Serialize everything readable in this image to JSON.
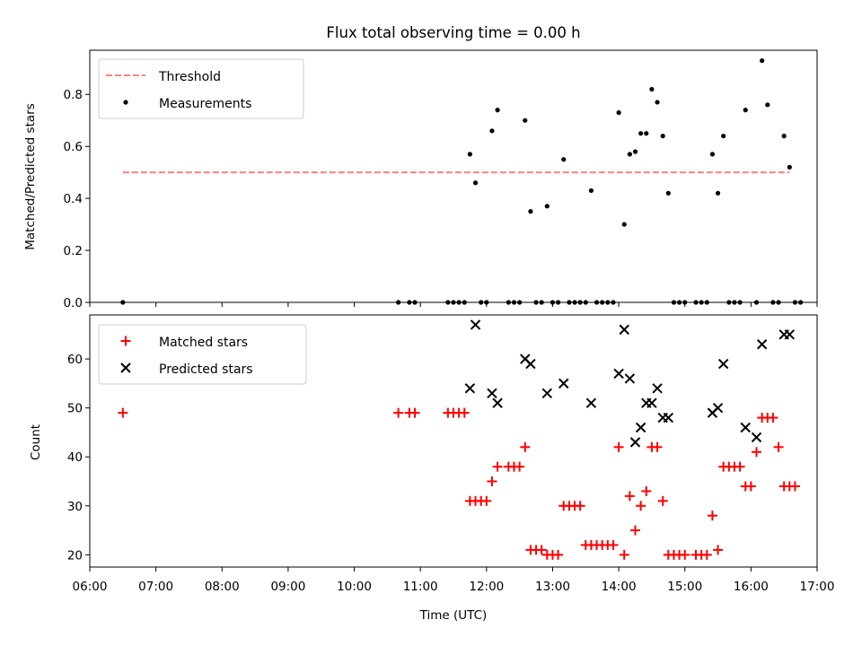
{
  "chart_data": [
    {
      "type": "scatter",
      "title": "Flux total observing time = 0.00 h",
      "xlabel": "",
      "ylabel": "Matched/Predicted stars",
      "ylim": [
        0,
        0.97
      ],
      "yticks": [
        0.0,
        0.2,
        0.4,
        0.6,
        0.8
      ],
      "ytick_labels": [
        "0.0",
        "0.2",
        "0.4",
        "0.6",
        "0.8"
      ],
      "legend_position": "top-left",
      "threshold": {
        "name": "Threshold",
        "value": 0.5,
        "x_start": "06:30",
        "x_end": "16:35",
        "color": "#ff8080"
      },
      "series": [
        {
          "name": "Measurements",
          "color": "#000000",
          "points": [
            [
              "06:30",
              0
            ],
            [
              "10:40",
              0
            ],
            [
              "10:50",
              0
            ],
            [
              "10:55",
              0
            ],
            [
              "11:25",
              0
            ],
            [
              "11:30",
              0
            ],
            [
              "11:35",
              0
            ],
            [
              "11:40",
              0
            ],
            [
              "11:45",
              0.57
            ],
            [
              "11:50",
              0.46
            ],
            [
              "11:55",
              0
            ],
            [
              "12:00",
              0
            ],
            [
              "12:05",
              0.66
            ],
            [
              "12:10",
              0.74
            ],
            [
              "12:20",
              0
            ],
            [
              "12:25",
              0
            ],
            [
              "12:30",
              0
            ],
            [
              "12:35",
              0.7
            ],
            [
              "12:40",
              0.35
            ],
            [
              "12:45",
              0
            ],
            [
              "12:50",
              0
            ],
            [
              "12:55",
              0.37
            ],
            [
              "13:00",
              0
            ],
            [
              "13:05",
              0
            ],
            [
              "13:10",
              0.55
            ],
            [
              "13:15",
              0
            ],
            [
              "13:20",
              0
            ],
            [
              "13:25",
              0
            ],
            [
              "13:30",
              0
            ],
            [
              "13:35",
              0.43
            ],
            [
              "13:40",
              0
            ],
            [
              "13:45",
              0
            ],
            [
              "13:50",
              0
            ],
            [
              "13:55",
              0
            ],
            [
              "14:00",
              0.73
            ],
            [
              "14:05",
              0.3
            ],
            [
              "14:10",
              0.57
            ],
            [
              "14:15",
              0.58
            ],
            [
              "14:20",
              0.65
            ],
            [
              "14:25",
              0.65
            ],
            [
              "14:30",
              0.82
            ],
            [
              "14:35",
              0.77
            ],
            [
              "14:40",
              0.64
            ],
            [
              "14:45",
              0.42
            ],
            [
              "14:50",
              0
            ],
            [
              "14:55",
              0
            ],
            [
              "15:00",
              0
            ],
            [
              "15:10",
              0
            ],
            [
              "15:15",
              0
            ],
            [
              "15:20",
              0
            ],
            [
              "15:25",
              0.57
            ],
            [
              "15:30",
              0.42
            ],
            [
              "15:35",
              0.64
            ],
            [
              "15:40",
              0
            ],
            [
              "15:45",
              0
            ],
            [
              "15:50",
              0
            ],
            [
              "15:55",
              0.74
            ],
            [
              "16:05",
              0
            ],
            [
              "16:10",
              0.93
            ],
            [
              "16:15",
              0.76
            ],
            [
              "16:20",
              0
            ],
            [
              "16:25",
              0
            ],
            [
              "16:30",
              0.64
            ],
            [
              "16:35",
              0.52
            ],
            [
              "16:40",
              0
            ],
            [
              "16:45",
              0
            ]
          ]
        }
      ]
    },
    {
      "type": "scatter",
      "title": "",
      "xlabel": "Time (UTC)",
      "ylabel": "Count",
      "xlim": [
        "06:00",
        "17:00"
      ],
      "xtick_labels": [
        "06:00",
        "07:00",
        "08:00",
        "09:00",
        "10:00",
        "11:00",
        "12:00",
        "13:00",
        "14:00",
        "15:00",
        "16:00",
        "17:00"
      ],
      "ylim": [
        17.5,
        69
      ],
      "yticks": [
        20,
        30,
        40,
        50,
        60
      ],
      "ytick_labels": [
        "20",
        "30",
        "40",
        "50",
        "60"
      ],
      "legend_position": "top-left",
      "series": [
        {
          "name": "Matched stars",
          "marker": "+",
          "color": "#ff0000",
          "points": [
            [
              "06:30",
              49
            ],
            [
              "10:40",
              49
            ],
            [
              "10:50",
              49
            ],
            [
              "10:55",
              49
            ],
            [
              "11:25",
              49
            ],
            [
              "11:30",
              49
            ],
            [
              "11:35",
              49
            ],
            [
              "11:40",
              49
            ],
            [
              "11:45",
              31
            ],
            [
              "11:50",
              31
            ],
            [
              "11:55",
              31
            ],
            [
              "12:00",
              31
            ],
            [
              "12:05",
              35
            ],
            [
              "12:10",
              38
            ],
            [
              "12:20",
              38
            ],
            [
              "12:25",
              38
            ],
            [
              "12:30",
              38
            ],
            [
              "12:35",
              42
            ],
            [
              "12:40",
              21
            ],
            [
              "12:45",
              21
            ],
            [
              "12:50",
              21
            ],
            [
              "12:55",
              20
            ],
            [
              "13:00",
              20
            ],
            [
              "13:05",
              20
            ],
            [
              "13:10",
              30
            ],
            [
              "13:15",
              30
            ],
            [
              "13:20",
              30
            ],
            [
              "13:25",
              30
            ],
            [
              "13:30",
              22
            ],
            [
              "13:35",
              22
            ],
            [
              "13:40",
              22
            ],
            [
              "13:45",
              22
            ],
            [
              "13:50",
              22
            ],
            [
              "13:55",
              22
            ],
            [
              "14:00",
              42
            ],
            [
              "14:05",
              20
            ],
            [
              "14:10",
              32
            ],
            [
              "14:15",
              25
            ],
            [
              "14:20",
              30
            ],
            [
              "14:25",
              33
            ],
            [
              "14:30",
              42
            ],
            [
              "14:35",
              42
            ],
            [
              "14:40",
              31
            ],
            [
              "14:45",
              20
            ],
            [
              "14:50",
              20
            ],
            [
              "14:55",
              20
            ],
            [
              "15:00",
              20
            ],
            [
              "15:10",
              20
            ],
            [
              "15:15",
              20
            ],
            [
              "15:20",
              20
            ],
            [
              "15:25",
              28
            ],
            [
              "15:30",
              21
            ],
            [
              "15:35",
              38
            ],
            [
              "15:40",
              38
            ],
            [
              "15:45",
              38
            ],
            [
              "15:50",
              38
            ],
            [
              "15:55",
              34
            ],
            [
              "16:00",
              34
            ],
            [
              "16:05",
              41
            ],
            [
              "16:10",
              48
            ],
            [
              "16:15",
              48
            ],
            [
              "16:20",
              48
            ],
            [
              "16:25",
              42
            ],
            [
              "16:30",
              34
            ],
            [
              "16:35",
              34
            ],
            [
              "16:40",
              34
            ]
          ]
        },
        {
          "name": "Predicted stars",
          "marker": "x",
          "color": "#000000",
          "points": [
            [
              "11:45",
              54
            ],
            [
              "11:50",
              67
            ],
            [
              "12:05",
              53
            ],
            [
              "12:10",
              51
            ],
            [
              "12:35",
              60
            ],
            [
              "12:40",
              59
            ],
            [
              "12:55",
              53
            ],
            [
              "13:10",
              55
            ],
            [
              "13:35",
              51
            ],
            [
              "14:00",
              57
            ],
            [
              "14:05",
              66
            ],
            [
              "14:10",
              56
            ],
            [
              "14:15",
              43
            ],
            [
              "14:20",
              46
            ],
            [
              "14:25",
              51
            ],
            [
              "14:30",
              51
            ],
            [
              "14:35",
              54
            ],
            [
              "14:40",
              48
            ],
            [
              "14:45",
              48
            ],
            [
              "15:25",
              49
            ],
            [
              "15:30",
              50
            ],
            [
              "15:35",
              59
            ],
            [
              "15:55",
              46
            ],
            [
              "16:05",
              44
            ],
            [
              "16:10",
              63
            ],
            [
              "16:30",
              65
            ],
            [
              "16:35",
              65
            ]
          ]
        }
      ]
    }
  ]
}
